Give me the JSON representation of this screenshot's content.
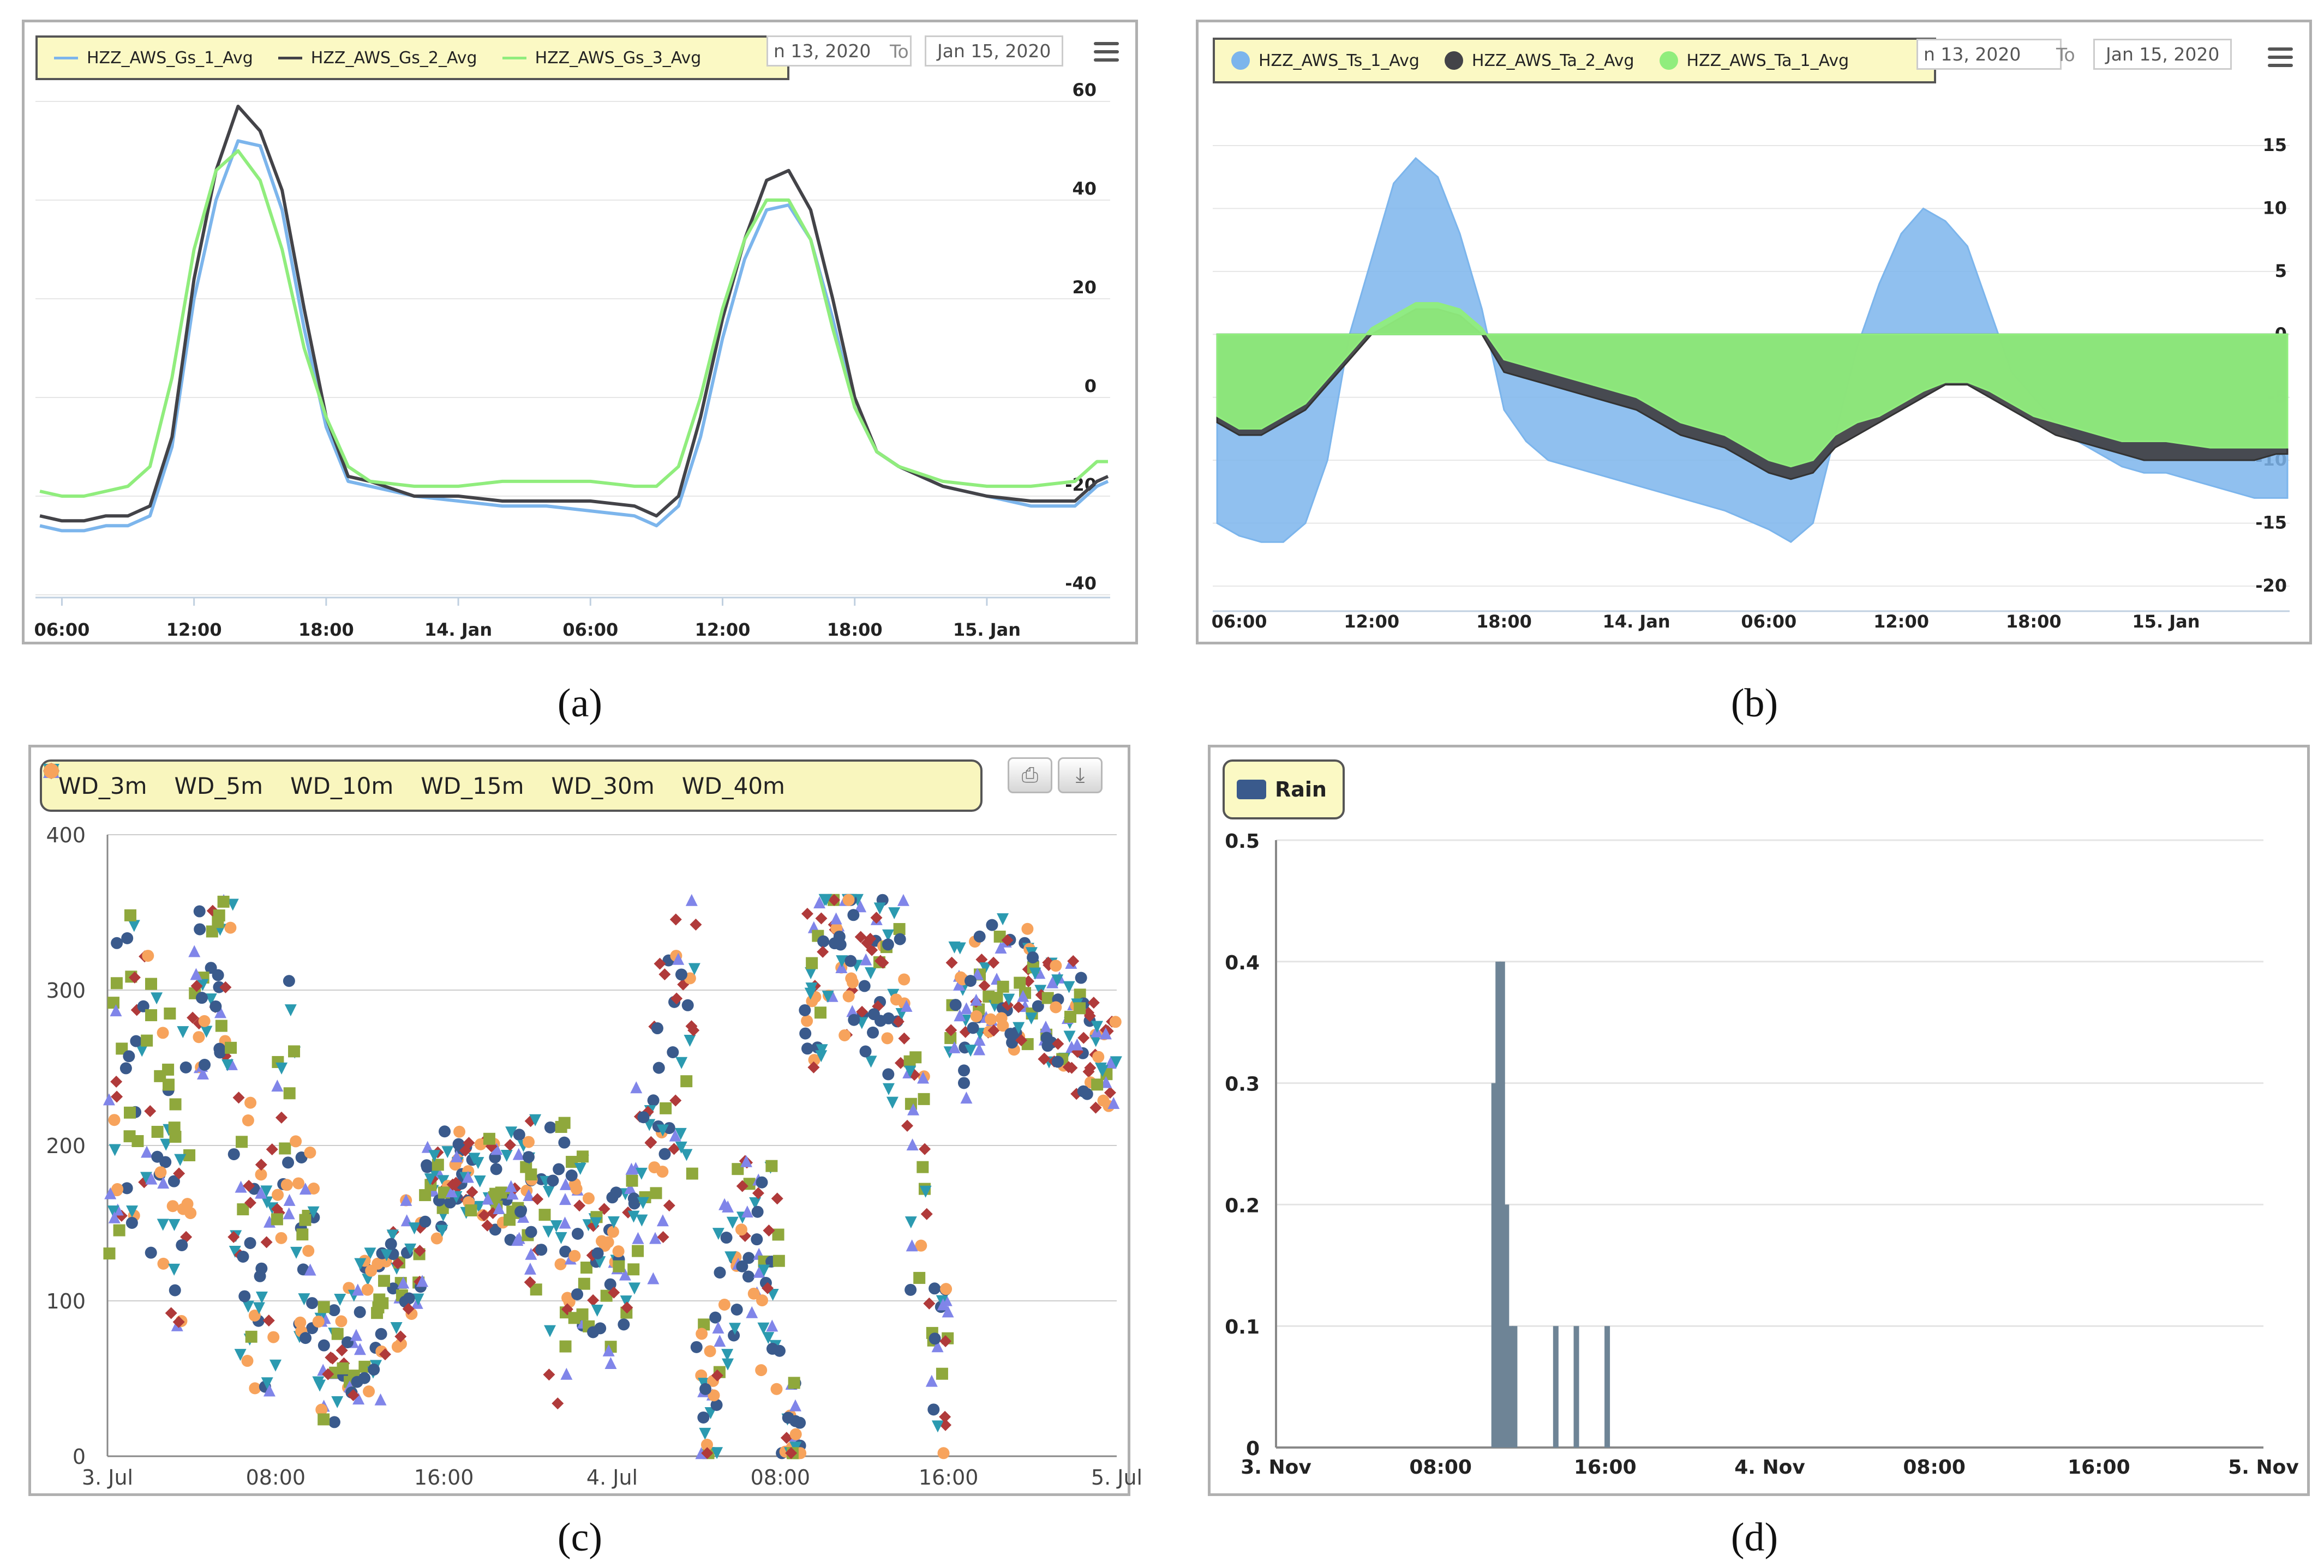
{
  "captions": {
    "a": "(a)",
    "b": "(b)",
    "c": "(c)",
    "d": "(d)"
  },
  "colors": {
    "blue": "#7cb5ec",
    "dark": "#434348",
    "green": "#90ed7d",
    "orange": "#f7a35c",
    "purple": "#8085e9",
    "darkred": "#b03a3a",
    "olive": "#8fa83c",
    "teal": "#2b9ab0",
    "rain": "#6e8496",
    "navy": "#3a5a8c"
  },
  "chart_data": [
    {
      "id": "a",
      "type": "line",
      "title": "",
      "legend": [
        "HZZ_AWS_Gs_1_Avg",
        "HZZ_AWS_Gs_2_Avg",
        "HZZ_AWS_Gs_3_Avg"
      ],
      "date_from_fragment": "n 13, 2020",
      "to_label": "To",
      "date_to": "Jan 15, 2020",
      "x_ticks": [
        "06:00",
        "12:00",
        "18:00",
        "14. Jan",
        "06:00",
        "12:00",
        "18:00",
        "15. Jan"
      ],
      "x_tick_hours": [
        6,
        12,
        18,
        24,
        30,
        36,
        42,
        48
      ],
      "xlim": [
        4.8,
        53.6
      ],
      "y_ticks": [
        60,
        40,
        20,
        0,
        -20,
        -40
      ],
      "ylim": [
        -40,
        60
      ],
      "x": [
        5,
        6,
        7,
        8,
        9,
        10,
        11,
        12,
        13,
        14,
        15,
        16,
        17,
        18,
        19,
        20,
        22,
        24,
        26,
        28,
        30,
        32,
        33,
        34,
        35,
        36,
        37,
        38,
        39,
        40,
        41,
        42,
        43,
        44,
        46,
        48,
        50,
        52,
        53,
        53.5
      ],
      "series": [
        {
          "name": "HZZ_AWS_Gs_1_Avg",
          "color": "#7cb5ec",
          "values": [
            -26,
            -27,
            -27,
            -26,
            -26,
            -24,
            -10,
            20,
            40,
            52,
            51,
            38,
            14,
            -6,
            -17,
            -18,
            -20,
            -21,
            -22,
            -22,
            -23,
            -24,
            -26,
            -22,
            -8,
            12,
            28,
            38,
            39,
            32,
            16,
            -2,
            -11,
            -14,
            -18,
            -20,
            -22,
            -22,
            -18,
            -17
          ]
        },
        {
          "name": "HZZ_AWS_Gs_2_Avg",
          "color": "#434348",
          "values": [
            -24,
            -25,
            -25,
            -24,
            -24,
            -22,
            -8,
            24,
            46,
            59,
            54,
            42,
            18,
            -4,
            -16,
            -17,
            -20,
            -20,
            -21,
            -21,
            -21,
            -22,
            -24,
            -20,
            -4,
            16,
            32,
            44,
            46,
            38,
            20,
            0,
            -11,
            -14,
            -18,
            -20,
            -21,
            -21,
            -17,
            -16
          ]
        },
        {
          "name": "HZZ_AWS_Gs_3_Avg",
          "color": "#90ed7d",
          "values": [
            -19,
            -20,
            -20,
            -19,
            -18,
            -14,
            4,
            30,
            46,
            50,
            44,
            30,
            10,
            -4,
            -14,
            -17,
            -18,
            -18,
            -17,
            -17,
            -17,
            -18,
            -18,
            -14,
            0,
            18,
            32,
            40,
            40,
            32,
            14,
            -2,
            -11,
            -14,
            -17,
            -18,
            -18,
            -17,
            -13,
            -13
          ]
        }
      ]
    },
    {
      "id": "b",
      "type": "area",
      "title": "",
      "legend": [
        "HZZ_AWS_Ts_1_Avg",
        "HZZ_AWS_Ta_2_Avg",
        "HZZ_AWS_Ta_1_Avg"
      ],
      "date_from_fragment": "n 13, 2020",
      "to_label": "To",
      "date_to": "Jan 15, 2020",
      "x_ticks": [
        "06:00",
        "12:00",
        "18:00",
        "14. Jan",
        "06:00",
        "12:00",
        "18:00",
        "15. Jan"
      ],
      "x_tick_hours": [
        6,
        12,
        18,
        24,
        30,
        36,
        42,
        48
      ],
      "xlim": [
        4.8,
        53.6
      ],
      "y_ticks": [
        15,
        10,
        5,
        0,
        -5,
        -10,
        -15,
        -20
      ],
      "ylim": [
        -20,
        15
      ],
      "x": [
        5,
        6,
        7,
        8,
        9,
        10,
        11,
        12,
        13,
        14,
        15,
        16,
        17,
        18,
        19,
        20,
        22,
        24,
        26,
        28,
        30,
        31,
        32,
        33,
        34,
        35,
        36,
        37,
        38,
        39,
        40,
        41,
        42,
        43,
        44,
        45,
        46,
        47,
        48,
        50,
        52,
        53,
        53.5
      ],
      "series": [
        {
          "name": "HZZ_AWS_Ts_1_Avg",
          "color": "#7cb5ec",
          "values": [
            -15,
            -16,
            -16.5,
            -16.5,
            -15,
            -10,
            0,
            6,
            12,
            14,
            12.5,
            8,
            2,
            -6,
            -8.5,
            -10,
            -11,
            -12,
            -13,
            -14,
            -15.5,
            -16.5,
            -15,
            -8,
            -1,
            4,
            8,
            10,
            9,
            7,
            2,
            -3,
            -5,
            -7,
            -8.5,
            -9.5,
            -10.5,
            -11,
            -11,
            -12,
            -13,
            -13,
            -13
          ]
        },
        {
          "name": "HZZ_AWS_Ta_2_Avg",
          "color": "#434348",
          "values": [
            -7,
            -8,
            -8,
            -7,
            -6,
            -4,
            -2,
            0,
            1,
            2,
            2,
            1.5,
            0,
            -3,
            -3.5,
            -4,
            -5,
            -6,
            -8,
            -9,
            -11,
            -11.5,
            -11,
            -9,
            -8,
            -7,
            -6,
            -5,
            -4,
            -4,
            -5,
            -6,
            -7,
            -8,
            -8.5,
            -9,
            -9.5,
            -10,
            -10,
            -10,
            -10,
            -9.5,
            -9.5
          ]
        },
        {
          "name": "HZZ_AWS_Ta_1_Avg",
          "color": "#90ed7d",
          "values": [
            -6.5,
            -7.5,
            -7.5,
            -6.5,
            -5.5,
            -3.5,
            -1.5,
            0.5,
            1.5,
            2.5,
            2.5,
            2,
            0.5,
            -2,
            -2.5,
            -3,
            -4,
            -5,
            -7,
            -8,
            -10,
            -10.5,
            -10,
            -8,
            -7,
            -6.5,
            -5.5,
            -4.5,
            -3.8,
            -3.8,
            -4.5,
            -5.5,
            -6.5,
            -7,
            -7.5,
            -8,
            -8.5,
            -8.5,
            -8.5,
            -9,
            -9,
            -9,
            -9
          ]
        }
      ]
    },
    {
      "id": "c",
      "type": "scatter",
      "title": "",
      "legend": [
        "WD_3m",
        "WD_5m",
        "WD_10m",
        "WD_15m",
        "WD_30m",
        "WD_40m"
      ],
      "legend_markers": [
        "circle",
        "diamond",
        "square",
        "triangle",
        "triangle-down",
        "circle"
      ],
      "legend_colors": [
        "#3a5a8c",
        "#b03a3a",
        "#8fa83c",
        "#8085e9",
        "#2b9ab0",
        "#f7a35c"
      ],
      "x_ticks": [
        "3. Jul",
        "08:00",
        "16:00",
        "4. Jul",
        "08:00",
        "16:00",
        "5. Jul"
      ],
      "x_tick_hours": [
        0,
        8,
        16,
        24,
        32,
        40,
        48
      ],
      "xlim": [
        0,
        48
      ],
      "y_ticks": [
        400,
        300,
        200,
        100,
        0
      ],
      "ylim": [
        0,
        400
      ],
      "cluster_profile": {
        "x_hours": [
          0.5,
          1.5,
          2.5,
          3.5,
          4.5,
          5.5,
          6.5,
          7.5,
          8.5,
          9.5,
          10.5,
          11.5,
          12.5,
          13.5,
          14.5,
          15.5,
          16.5,
          17.5,
          18.5,
          19.5,
          20.5,
          21.5,
          22.5,
          23.5,
          24.5,
          25.5,
          26.5,
          27.5,
          28.5,
          29.5,
          30.5,
          31.5,
          32.5,
          33.5,
          34.5,
          35.5,
          36.5,
          37.5,
          38.5,
          39.5,
          40.5,
          41.5,
          42.5,
          43.5,
          44.5,
          45.5,
          46.5,
          47.5
        ],
        "center_deg": [
          230,
          250,
          200,
          180,
          300,
          310,
          150,
          120,
          220,
          130,
          60,
          70,
          85,
          105,
          130,
          170,
          185,
          180,
          175,
          170,
          165,
          120,
          140,
          110,
          130,
          170,
          230,
          270,
          40,
          120,
          140,
          110,
          20,
          300,
          330,
          320,
          310,
          300,
          200,
          50,
          280,
          300,
          310,
          300,
          290,
          280,
          270,
          250
        ],
        "spread_deg": [
          110,
          100,
          110,
          100,
          60,
          60,
          90,
          80,
          90,
          70,
          40,
          40,
          50,
          40,
          40,
          30,
          25,
          25,
          30,
          40,
          60,
          100,
          60,
          50,
          60,
          80,
          90,
          100,
          50,
          70,
          60,
          80,
          30,
          60,
          40,
          50,
          60,
          80,
          100,
          60,
          50,
          40,
          40,
          40,
          40,
          40,
          40,
          30
        ],
        "points_per_bin": 22
      }
    },
    {
      "id": "d",
      "type": "bar",
      "title": "",
      "legend": [
        "Rain"
      ],
      "x_ticks": [
        "3. Nov",
        "08:00",
        "16:00",
        "4. Nov",
        "08:00",
        "16:00",
        "5. Nov"
      ],
      "x_tick_hours": [
        0,
        8,
        16,
        24,
        32,
        40,
        48
      ],
      "xlim": [
        0,
        48
      ],
      "y_ticks": [
        0.5,
        0.4,
        0.3,
        0.2,
        0.1,
        0
      ],
      "ylim": [
        0,
        0.5
      ],
      "x": [
        10.6,
        10.8,
        11.0,
        11.2,
        11.4,
        11.6,
        13.6,
        14.6,
        16.1
      ],
      "values": [
        0.3,
        0.4,
        0.4,
        0.2,
        0.1,
        0.1,
        0.1,
        0.1,
        0.1
      ]
    }
  ]
}
